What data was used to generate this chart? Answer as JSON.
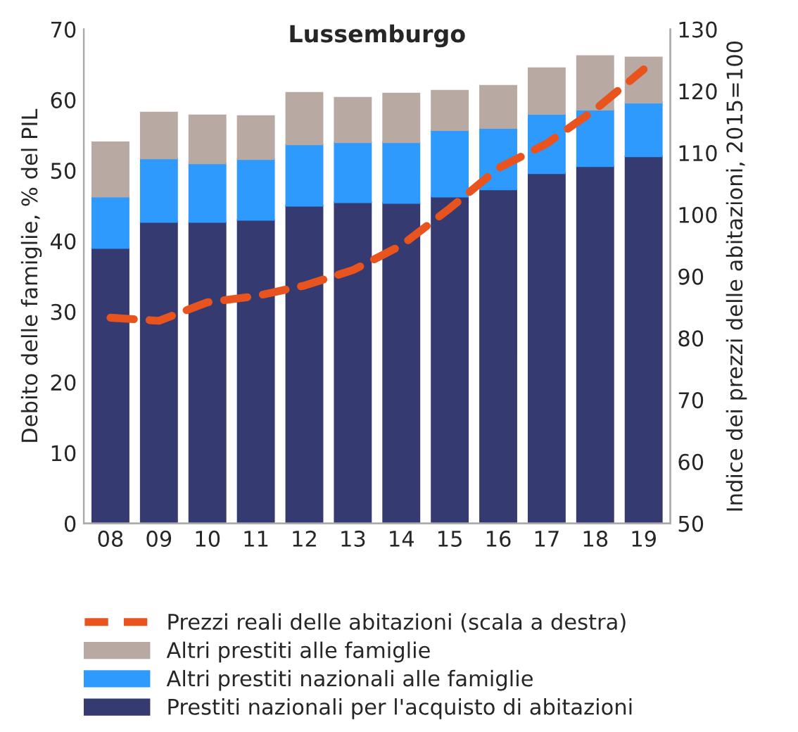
{
  "chart_data": {
    "type": "bar",
    "title": "Lussemburgo",
    "ylabel": "Debito delle famiglie, % del PIL",
    "y2label": "Indice dei prezzi delle abitazioni, 2015=100",
    "categories": [
      "08",
      "09",
      "10",
      "11",
      "12",
      "13",
      "14",
      "15",
      "16",
      "17",
      "18",
      "19"
    ],
    "stacked": true,
    "series": [
      {
        "name": "Prestiti nazionali per l'acquisto di abitazioni",
        "color": "#353a70",
        "values": [
          39,
          42.7,
          42.7,
          43,
          45,
          45.5,
          45.4,
          46.3,
          47.3,
          49.6,
          50.6,
          52
        ]
      },
      {
        "name": "Altri prestiti nazionali alle famiglie",
        "color": "#2e9afe",
        "values": [
          7.3,
          9.0,
          8.3,
          8.6,
          8.7,
          8.5,
          8.6,
          9.4,
          8.7,
          8.4,
          8.0,
          7.6
        ]
      },
      {
        "name": "Altri prestiti alle famiglie",
        "color": "#b8a9a2",
        "values": [
          7.7,
          6.5,
          6.8,
          6.1,
          7.3,
          6.3,
          6.9,
          5.6,
          6.0,
          6.5,
          7.6,
          6.4
        ]
      },
      {
        "name": "Prezzi reali delle abitazioni (scala a destra)",
        "type": "line",
        "axis": "y2",
        "line_style": "dashed",
        "color": "#e8531e",
        "values": [
          83.3,
          82.8,
          85.8,
          86.8,
          88.5,
          91,
          95,
          101,
          107.5,
          111.5,
          117,
          123.5
        ]
      }
    ],
    "ylim": [
      0,
      70
    ],
    "yticks": [
      0,
      10,
      20,
      30,
      40,
      50,
      60,
      70
    ],
    "y2lim": [
      50,
      130
    ],
    "y2ticks": [
      50,
      60,
      70,
      80,
      90,
      100,
      110,
      120,
      130
    ],
    "legend": "bottom",
    "grid": false
  }
}
